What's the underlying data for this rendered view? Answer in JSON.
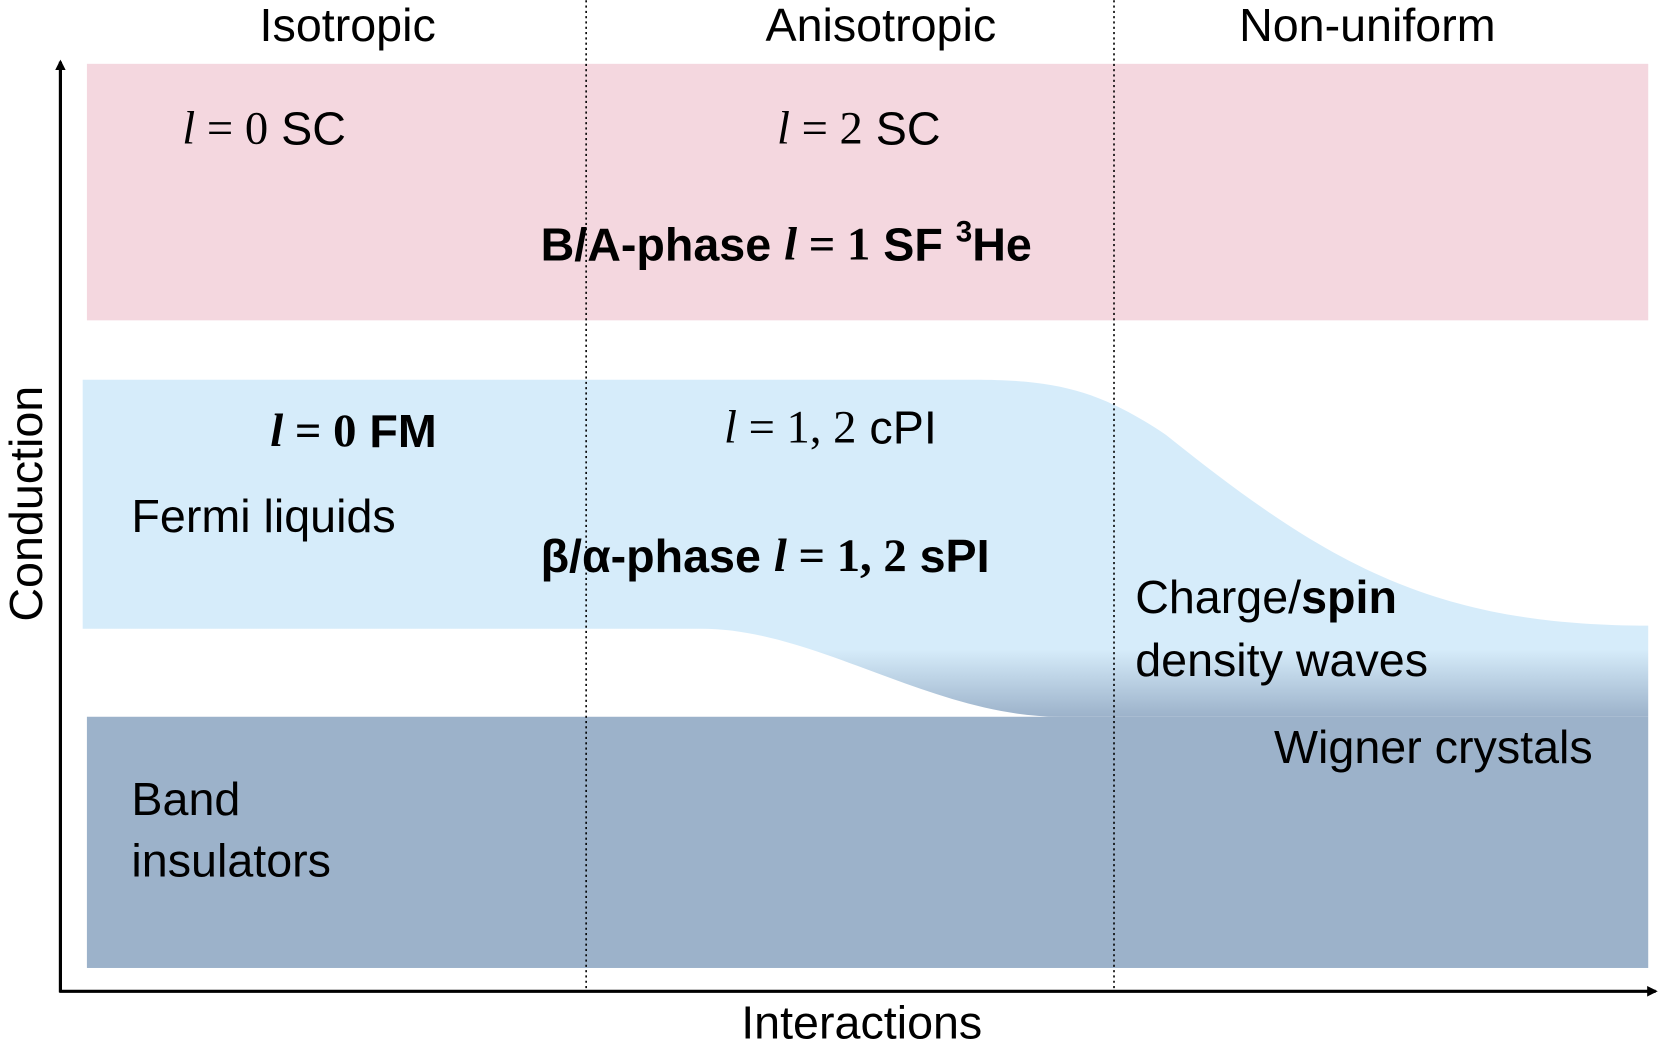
{
  "columns": [
    "Isotropic",
    "Anisotropic",
    "Non-uniform"
  ],
  "axes": {
    "x": "Interactions",
    "y": "Conduction"
  },
  "labels": {
    "s_sc": [
      "l",
      " = 0",
      " SC"
    ],
    "d_sc": [
      "l",
      " = 2",
      " SC"
    ],
    "he3": [
      "B/A-phase ",
      "l",
      " = 1",
      " SF ",
      "3",
      "He"
    ],
    "fm": [
      "l",
      " = 0",
      " FM"
    ],
    "cpi": [
      "l",
      " = 1, 2",
      " cPI"
    ],
    "fermi": "Fermi liquids",
    "spi": [
      "β/α-phase ",
      "l",
      " = 1, 2",
      " sPI"
    ],
    "cdw": [
      "Charge/",
      "spin"
    ],
    "cdw2": "density waves",
    "wigner": "Wigner crystals",
    "band": [
      "Band",
      "insulators"
    ]
  }
}
